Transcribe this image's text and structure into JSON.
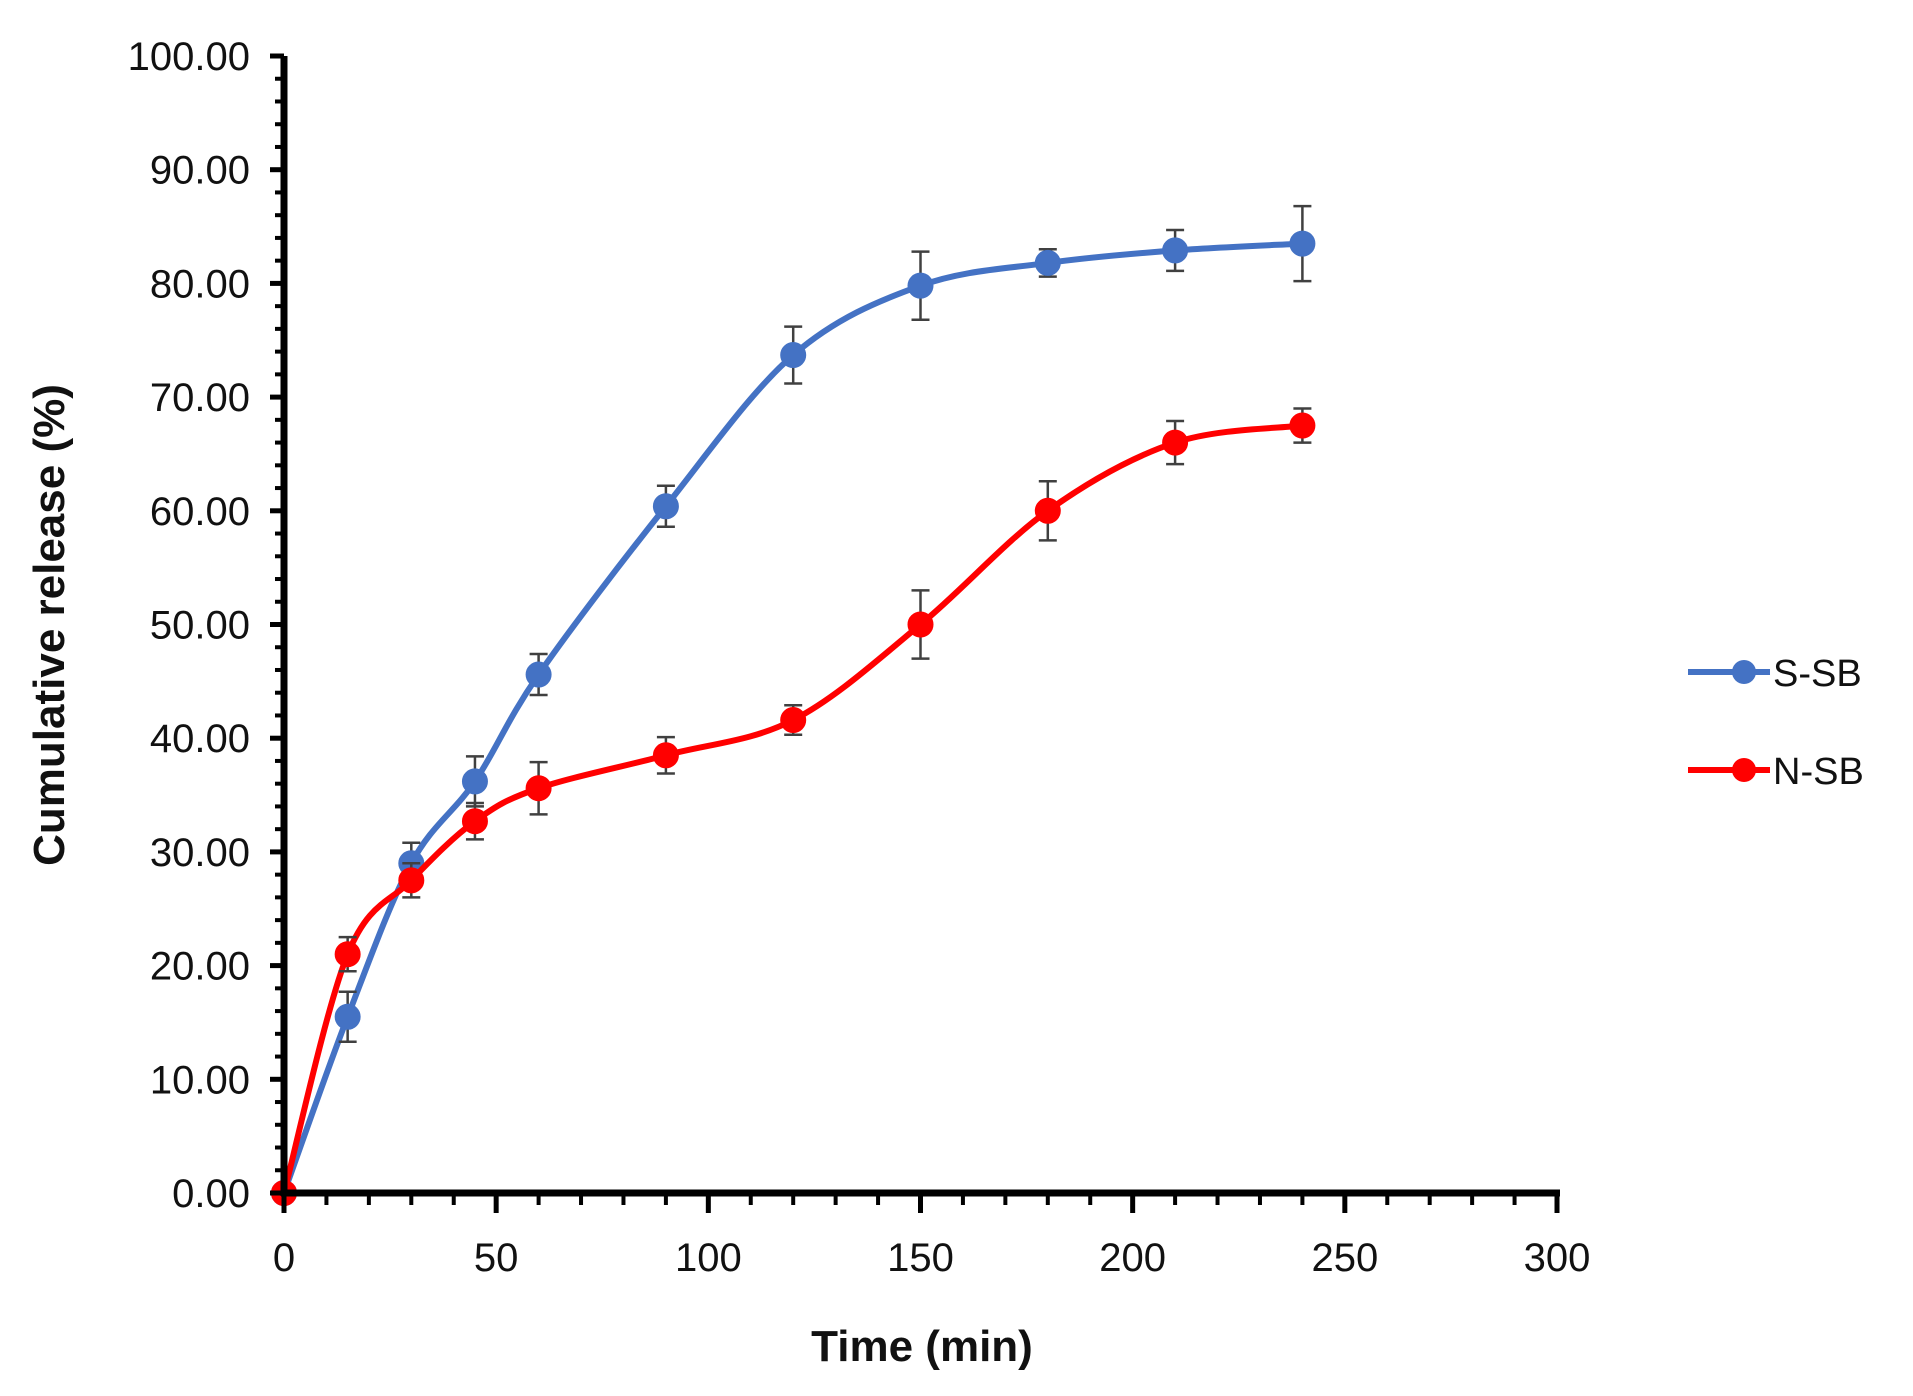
{
  "chart_data": {
    "type": "line",
    "title": "",
    "xlabel": "Time (min)",
    "ylabel": "Cumulative  release (%)",
    "xlim": [
      0,
      300
    ],
    "ylim": [
      0,
      100
    ],
    "x_ticks": [
      0,
      50,
      100,
      150,
      200,
      250,
      300
    ],
    "y_ticks": [
      0,
      10,
      20,
      30,
      40,
      50,
      60,
      70,
      80,
      90,
      100
    ],
    "x_tick_labels": [
      "0",
      "50",
      "100",
      "150",
      "200",
      "250",
      "300"
    ],
    "y_tick_labels": [
      "0.00",
      "10.00",
      "20.00",
      "30.00",
      "40.00",
      "50.00",
      "60.00",
      "70.00",
      "80.00",
      "90.00",
      "100.00"
    ],
    "grid": false,
    "legend_position": "right",
    "x": [
      0,
      15,
      30,
      45,
      60,
      90,
      120,
      150,
      180,
      210,
      240
    ],
    "series": [
      {
        "name": "S-SB",
        "color": "#4472C4",
        "values": [
          0.0,
          15.5,
          29.0,
          36.2,
          45.6,
          60.4,
          73.7,
          79.8,
          81.8,
          82.9,
          83.5
        ],
        "errors": [
          0.0,
          2.2,
          1.8,
          2.2,
          1.8,
          1.8,
          2.5,
          3.0,
          1.2,
          1.8,
          3.3
        ]
      },
      {
        "name": "N-SB",
        "color": "#FF0000",
        "values": [
          0.0,
          21.0,
          27.5,
          32.7,
          35.6,
          38.5,
          41.6,
          50.0,
          60.0,
          66.0,
          67.5
        ],
        "errors": [
          0.0,
          1.5,
          1.5,
          1.6,
          2.3,
          1.6,
          1.3,
          3.0,
          2.6,
          1.9,
          1.5
        ]
      }
    ]
  }
}
